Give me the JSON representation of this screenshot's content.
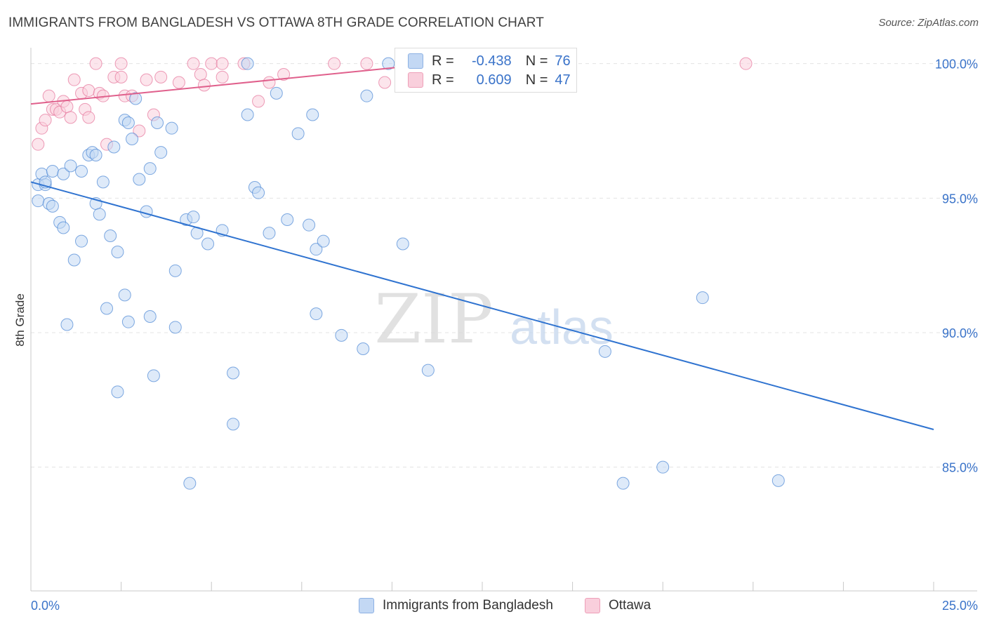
{
  "title": "IMMIGRANTS FROM BANGLADESH VS OTTAWA 8TH GRADE CORRELATION CHART",
  "source": "Source: ZipAtlas.com",
  "watermark": {
    "left": "ZIP",
    "right": "atlas"
  },
  "legend": {
    "series": [
      {
        "r_label": "R =",
        "r_value": "-0.438",
        "n_label": "N =",
        "n_value": "76",
        "color": "#aec8ee"
      },
      {
        "r_label": "R =",
        "r_value": "0.609",
        "n_label": "N =",
        "n_value": "47",
        "color": "#f6b8cb"
      }
    ]
  },
  "bottom_legend": [
    {
      "label": "Immigrants from Bangladesh",
      "color": "#aec8ee"
    },
    {
      "label": "Ottawa",
      "color": "#f6b8cb"
    }
  ],
  "chart_data": {
    "type": "scatter",
    "ylabel": "8th Grade",
    "x_tick_labels": [
      "0.0%",
      "25.0%"
    ],
    "y_tick_labels": [
      "100.0%",
      "95.0%",
      "90.0%",
      "85.0%"
    ],
    "y_ticks": [
      100,
      95,
      90,
      85
    ],
    "xlim": [
      0,
      25
    ],
    "ylim": [
      80.4,
      100.8
    ],
    "grid": true,
    "colors": {
      "blue": "#4a86d4",
      "blue_fill": "#c3d8f4",
      "pink": "#e5739a",
      "pink_fill": "#f9cfdc",
      "axis_label": "#3a73c9"
    },
    "series": [
      {
        "name": "Immigrants from Bangladesh",
        "trend": {
          "x": [
            0,
            25
          ],
          "y": [
            95.6,
            86.4
          ]
        },
        "points": [
          [
            0.2,
            95.5
          ],
          [
            0.2,
            94.9
          ],
          [
            0.3,
            95.9
          ],
          [
            0.4,
            95.5
          ],
          [
            0.4,
            95.6
          ],
          [
            0.5,
            94.8
          ],
          [
            0.6,
            96.0
          ],
          [
            0.6,
            94.7
          ],
          [
            0.8,
            94.1
          ],
          [
            0.9,
            93.9
          ],
          [
            0.9,
            95.9
          ],
          [
            1.0,
            90.3
          ],
          [
            1.1,
            96.2
          ],
          [
            1.2,
            92.7
          ],
          [
            1.4,
            93.4
          ],
          [
            1.4,
            96.0
          ],
          [
            1.6,
            96.6
          ],
          [
            1.7,
            96.7
          ],
          [
            1.8,
            96.6
          ],
          [
            1.8,
            94.8
          ],
          [
            1.9,
            94.4
          ],
          [
            2.0,
            95.6
          ],
          [
            2.1,
            90.9
          ],
          [
            2.2,
            93.6
          ],
          [
            2.3,
            96.9
          ],
          [
            2.4,
            93.0
          ],
          [
            2.4,
            87.8
          ],
          [
            2.6,
            97.9
          ],
          [
            2.6,
            91.4
          ],
          [
            2.7,
            97.8
          ],
          [
            2.7,
            90.4
          ],
          [
            2.8,
            97.2
          ],
          [
            2.9,
            98.7
          ],
          [
            3.0,
            95.7
          ],
          [
            3.2,
            94.5
          ],
          [
            3.3,
            96.1
          ],
          [
            3.3,
            90.6
          ],
          [
            3.4,
            88.4
          ],
          [
            3.5,
            97.8
          ],
          [
            3.6,
            96.7
          ],
          [
            3.9,
            97.6
          ],
          [
            4.0,
            92.3
          ],
          [
            4.0,
            90.2
          ],
          [
            4.3,
            94.2
          ],
          [
            4.4,
            84.4
          ],
          [
            4.5,
            94.3
          ],
          [
            4.6,
            93.7
          ],
          [
            4.9,
            93.3
          ],
          [
            5.3,
            93.8
          ],
          [
            5.6,
            88.5
          ],
          [
            5.6,
            86.6
          ],
          [
            6.0,
            98.1
          ],
          [
            6.0,
            100.0
          ],
          [
            6.2,
            95.4
          ],
          [
            6.3,
            95.2
          ],
          [
            6.6,
            93.7
          ],
          [
            6.8,
            98.9
          ],
          [
            7.1,
            94.2
          ],
          [
            7.4,
            97.4
          ],
          [
            7.7,
            94.0
          ],
          [
            7.8,
            98.1
          ],
          [
            7.9,
            90.7
          ],
          [
            7.9,
            93.1
          ],
          [
            8.1,
            93.4
          ],
          [
            8.6,
            89.9
          ],
          [
            9.2,
            89.4
          ],
          [
            9.3,
            98.8
          ],
          [
            9.9,
            100.0
          ],
          [
            10.3,
            93.3
          ],
          [
            11.0,
            88.6
          ],
          [
            11.5,
            100.0
          ],
          [
            15.9,
            89.3
          ],
          [
            16.4,
            84.4
          ],
          [
            17.5,
            85.0
          ],
          [
            18.6,
            91.3
          ],
          [
            20.7,
            84.5
          ]
        ]
      },
      {
        "name": "Ottawa",
        "trend": {
          "x": [
            0,
            11.2
          ],
          "y": [
            98.5,
            100.0
          ]
        },
        "points": [
          [
            0.2,
            97.0
          ],
          [
            0.3,
            97.6
          ],
          [
            0.4,
            97.9
          ],
          [
            0.5,
            98.8
          ],
          [
            0.6,
            98.3
          ],
          [
            0.7,
            98.3
          ],
          [
            0.8,
            98.2
          ],
          [
            0.9,
            98.6
          ],
          [
            1.0,
            98.4
          ],
          [
            1.1,
            98.0
          ],
          [
            1.2,
            99.4
          ],
          [
            1.4,
            98.9
          ],
          [
            1.5,
            98.3
          ],
          [
            1.6,
            99.0
          ],
          [
            1.6,
            98.0
          ],
          [
            1.8,
            100.0
          ],
          [
            1.9,
            98.9
          ],
          [
            2.0,
            98.8
          ],
          [
            2.1,
            97.0
          ],
          [
            2.3,
            99.5
          ],
          [
            2.5,
            100.0
          ],
          [
            2.5,
            99.5
          ],
          [
            2.6,
            98.8
          ],
          [
            2.8,
            98.8
          ],
          [
            3.0,
            97.5
          ],
          [
            3.2,
            99.4
          ],
          [
            3.4,
            98.1
          ],
          [
            3.6,
            99.5
          ],
          [
            4.1,
            99.3
          ],
          [
            4.5,
            100.0
          ],
          [
            4.7,
            99.6
          ],
          [
            4.8,
            99.2
          ],
          [
            5.0,
            100.0
          ],
          [
            5.3,
            99.5
          ],
          [
            5.3,
            100.0
          ],
          [
            5.9,
            100.0
          ],
          [
            6.3,
            98.6
          ],
          [
            6.6,
            99.3
          ],
          [
            7.0,
            99.6
          ],
          [
            8.4,
            100.0
          ],
          [
            9.3,
            100.0
          ],
          [
            9.8,
            99.3
          ],
          [
            10.7,
            100.0
          ],
          [
            11.1,
            99.6
          ],
          [
            11.9,
            100.0
          ],
          [
            12.7,
            100.0
          ],
          [
            19.8,
            100.0
          ]
        ]
      }
    ]
  }
}
